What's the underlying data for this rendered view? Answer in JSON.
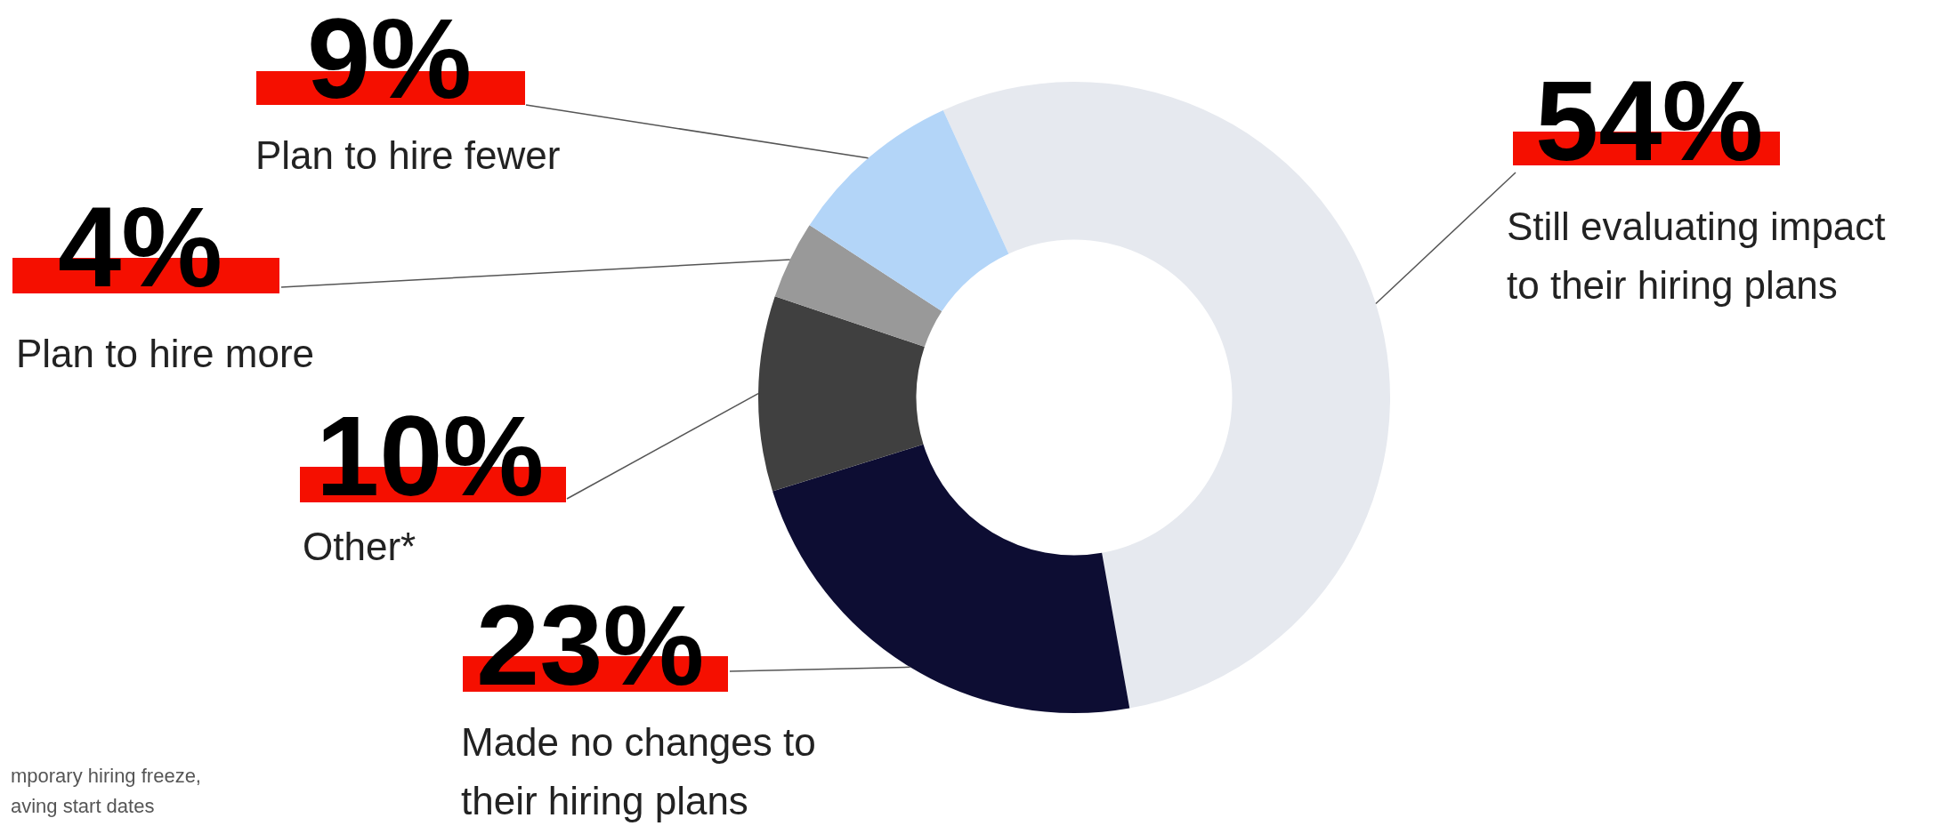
{
  "chart_data": {
    "type": "donut",
    "categories": [
      "Still evaluating impact to their hiring plans",
      "Made no changes to their hiring plans",
      "Other*",
      "Plan to hire more",
      "Plan to hire fewer"
    ],
    "values": [
      54,
      23,
      10,
      4,
      9
    ],
    "value_labels": [
      "54%",
      "23%",
      "10%",
      "4%",
      "9%"
    ],
    "colors": [
      "#e6e9ef",
      "#0d0d33",
      "#404040",
      "#999999",
      "#b3d5f8"
    ],
    "annotations": [
      "mporary hiring freeze,",
      "aving start dates"
    ],
    "legend": false
  }
}
